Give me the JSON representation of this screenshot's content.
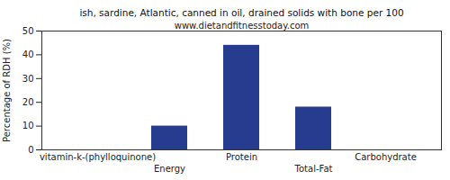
{
  "chart_data": {
    "type": "bar",
    "title": "ish, sardine, Atlantic, canned in oil, drained solids with bone per 100",
    "subtitle": "www.dietandfitnesstoday.com",
    "y_label": "Percentage of RDH (%)",
    "categories": [
      "vitamin-k-(phylloquinone)",
      "Energy",
      "Protein",
      "Total-Fat",
      "Carbohydrate"
    ],
    "values": [
      0,
      10,
      44,
      18,
      0
    ],
    "color": "#263d8f",
    "ylim": [
      0,
      50
    ],
    "yticks": [
      0,
      10,
      20,
      30,
      40,
      50
    ],
    "grid": false
  }
}
